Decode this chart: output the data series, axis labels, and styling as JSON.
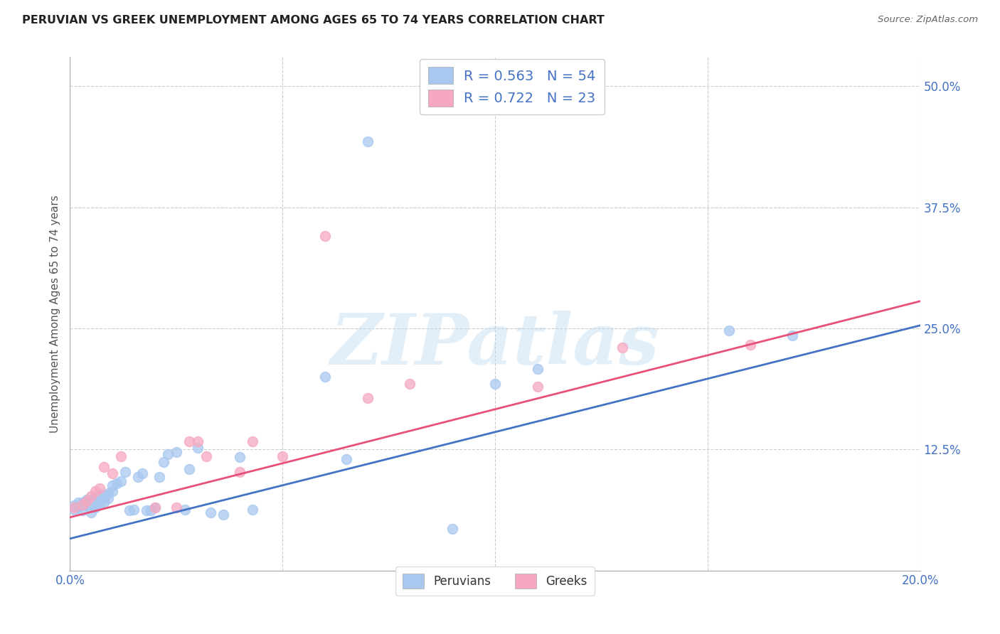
{
  "title": "PERUVIAN VS GREEK UNEMPLOYMENT AMONG AGES 65 TO 74 YEARS CORRELATION CHART",
  "source": "Source: ZipAtlas.com",
  "ylabel": "Unemployment Among Ages 65 to 74 years",
  "xlim": [
    0.0,
    0.2
  ],
  "ylim": [
    0.0,
    0.53
  ],
  "xticks": [
    0.0,
    0.05,
    0.1,
    0.15,
    0.2
  ],
  "xticklabels": [
    "0.0%",
    "",
    "",
    "",
    "20.0%"
  ],
  "ytick_positions": [
    0.0,
    0.125,
    0.25,
    0.375,
    0.5
  ],
  "ytick_labels": [
    "",
    "12.5%",
    "25.0%",
    "37.5%",
    "50.0%"
  ],
  "background_color": "#ffffff",
  "grid_color": "#cccccc",
  "watermark_text": "ZIPatlas",
  "blue_scatter_color": "#a8c8f0",
  "pink_scatter_color": "#f5a8c0",
  "blue_line_color": "#4472C4",
  "pink_line_color": "#E8507A",
  "legend_R1": "R = 0.563",
  "legend_N1": "N = 54",
  "legend_R2": "R = 0.722",
  "legend_N2": "N = 23",
  "legend_label1": "Peruvians",
  "legend_label2": "Greeks",
  "blue_scatter_x": [
    0.001,
    0.001,
    0.002,
    0.002,
    0.003,
    0.003,
    0.003,
    0.004,
    0.004,
    0.005,
    0.005,
    0.005,
    0.006,
    0.006,
    0.006,
    0.007,
    0.007,
    0.007,
    0.008,
    0.008,
    0.008,
    0.009,
    0.009,
    0.01,
    0.01,
    0.011,
    0.012,
    0.013,
    0.014,
    0.015,
    0.016,
    0.017,
    0.018,
    0.019,
    0.02,
    0.021,
    0.022,
    0.023,
    0.025,
    0.027,
    0.028,
    0.03,
    0.033,
    0.036,
    0.04,
    0.043,
    0.06,
    0.065,
    0.07,
    0.09,
    0.1,
    0.11,
    0.155,
    0.17
  ],
  "blue_scatter_y": [
    0.063,
    0.067,
    0.065,
    0.07,
    0.062,
    0.067,
    0.07,
    0.068,
    0.073,
    0.06,
    0.068,
    0.073,
    0.065,
    0.07,
    0.075,
    0.068,
    0.073,
    0.078,
    0.07,
    0.075,
    0.078,
    0.075,
    0.08,
    0.082,
    0.088,
    0.09,
    0.092,
    0.102,
    0.062,
    0.063,
    0.097,
    0.1,
    0.062,
    0.062,
    0.065,
    0.097,
    0.112,
    0.12,
    0.122,
    0.063,
    0.105,
    0.127,
    0.06,
    0.058,
    0.117,
    0.063,
    0.2,
    0.115,
    0.443,
    0.043,
    0.193,
    0.208,
    0.248,
    0.243
  ],
  "pink_scatter_x": [
    0.001,
    0.003,
    0.004,
    0.005,
    0.006,
    0.007,
    0.008,
    0.01,
    0.012,
    0.02,
    0.025,
    0.028,
    0.03,
    0.032,
    0.04,
    0.043,
    0.05,
    0.06,
    0.07,
    0.08,
    0.11,
    0.13,
    0.16
  ],
  "pink_scatter_y": [
    0.065,
    0.068,
    0.072,
    0.077,
    0.082,
    0.085,
    0.107,
    0.1,
    0.118,
    0.065,
    0.065,
    0.133,
    0.133,
    0.118,
    0.102,
    0.133,
    0.118,
    0.345,
    0.178,
    0.193,
    0.19,
    0.23,
    0.233
  ],
  "blue_trend_x": [
    0.0,
    0.2
  ],
  "blue_trend_y": [
    0.033,
    0.253
  ],
  "pink_trend_x": [
    0.0,
    0.2
  ],
  "pink_trend_y": [
    0.055,
    0.278
  ]
}
